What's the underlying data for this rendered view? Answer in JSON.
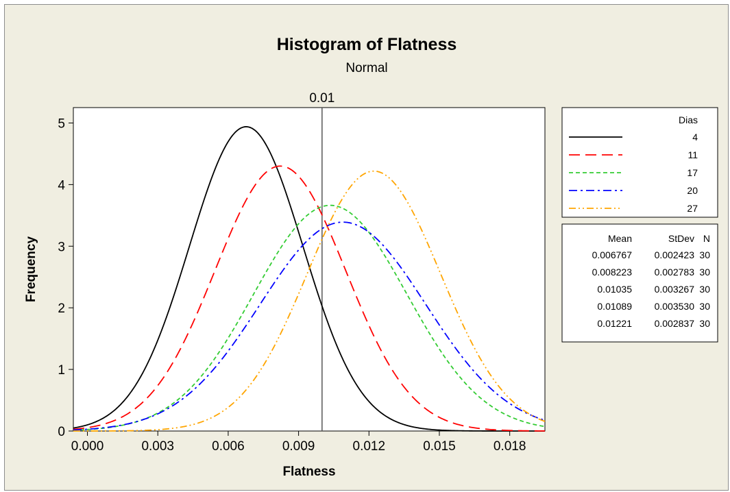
{
  "chart_data": {
    "type": "line",
    "title": "Histogram of Flatness",
    "subtitle": "Normal",
    "xlabel": "Flatness",
    "ylabel": "Frequency",
    "xlim": [
      -0.0006,
      0.0195
    ],
    "ylim": [
      0,
      5.25
    ],
    "xticks": [
      0.0,
      0.003,
      0.006,
      0.009,
      0.012,
      0.015,
      0.018
    ],
    "xtick_labels": [
      "0.000",
      "0.003",
      "0.006",
      "0.009",
      "0.012",
      "0.015",
      "0.018"
    ],
    "yticks": [
      0,
      1,
      2,
      3,
      4,
      5
    ],
    "ytick_labels": [
      "0",
      "1",
      "2",
      "3",
      "4",
      "5"
    ],
    "reference_line": {
      "x": 0.01,
      "label": "0.01"
    },
    "legend": {
      "title": "Dias",
      "placement": "right"
    },
    "series": [
      {
        "name": "4",
        "color": "#000000",
        "dash": "solid",
        "mean": 0.006767,
        "stdev": 0.002423,
        "n": 30,
        "mean_label": "0.006767",
        "stdev_label": "0.002423",
        "n_label": "30"
      },
      {
        "name": "11",
        "color": "#ff0000",
        "dash": "long-dash",
        "mean": 0.008223,
        "stdev": 0.002783,
        "n": 30,
        "mean_label": "0.008223",
        "stdev_label": "0.002783",
        "n_label": "30"
      },
      {
        "name": "17",
        "color": "#33cc33",
        "dash": "short-dash",
        "mean": 0.01035,
        "stdev": 0.003267,
        "n": 30,
        "mean_label": "0.01035",
        "stdev_label": "0.003267",
        "n_label": "30"
      },
      {
        "name": "20",
        "color": "#0000ff",
        "dash": "dash-dot",
        "mean": 0.01089,
        "stdev": 0.00353,
        "n": 30,
        "mean_label": "0.01089",
        "stdev_label": "0.003530",
        "n_label": "30"
      },
      {
        "name": "27",
        "color": "#ffa500",
        "dash": "dash-dot-dot",
        "mean": 0.01221,
        "stdev": 0.002837,
        "n": 30,
        "mean_label": "0.01221",
        "stdev_label": "0.002837",
        "n_label": "30"
      }
    ],
    "stats_table": {
      "headers": [
        "Mean",
        "StDev",
        "N"
      ]
    }
  }
}
